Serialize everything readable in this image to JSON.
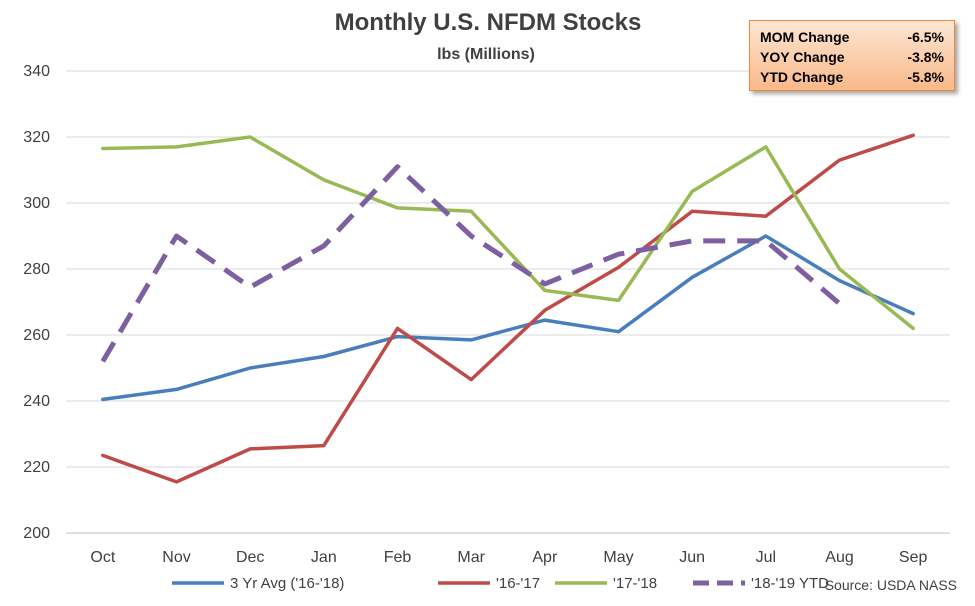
{
  "chart_data": {
    "type": "line",
    "title": "Monthly U.S. NFDM Stocks",
    "subtitle": "lbs (Millions)",
    "categories": [
      "Oct",
      "Nov",
      "Dec",
      "Jan",
      "Feb",
      "Mar",
      "Apr",
      "May",
      "Jun",
      "Jul",
      "Aug",
      "Sep"
    ],
    "ylim": [
      200,
      340
    ],
    "yticks": [
      200,
      220,
      240,
      260,
      280,
      300,
      320,
      340
    ],
    "grid": true,
    "legend_position": "bottom",
    "series": [
      {
        "name": "3 Yr Avg ('16-'18)",
        "color": "#4a7ebb",
        "dashed": false,
        "values": [
          240.5,
          243.5,
          250,
          253.5,
          259.5,
          258.5,
          264.5,
          261,
          277.5,
          290,
          276.5,
          266.5
        ]
      },
      {
        "name": "'16-'17",
        "color": "#be4b48",
        "dashed": false,
        "values": [
          223.5,
          215.5,
          225.5,
          226.5,
          262,
          246.5,
          267.5,
          280.5,
          297.5,
          296,
          313,
          320.5
        ]
      },
      {
        "name": "'17-'18",
        "color": "#98b954",
        "dashed": false,
        "values": [
          316.5,
          317,
          320,
          307,
          298.5,
          297.5,
          273.5,
          270.5,
          303.5,
          317,
          280,
          262
        ]
      },
      {
        "name": "'18-'19 YTD",
        "color": "#7d60a0",
        "dashed": true,
        "values": [
          252,
          290,
          274.5,
          287,
          311,
          290,
          275.5,
          284.5,
          288.5,
          288.5,
          269.5,
          null
        ]
      }
    ]
  },
  "source": "Source: USDA NASS",
  "stats": [
    {
      "label": "MOM Change",
      "value": "-6.5%"
    },
    {
      "label": "YOY Change",
      "value": "-3.8%"
    },
    {
      "label": "YTD Change",
      "value": "-5.8%"
    }
  ]
}
